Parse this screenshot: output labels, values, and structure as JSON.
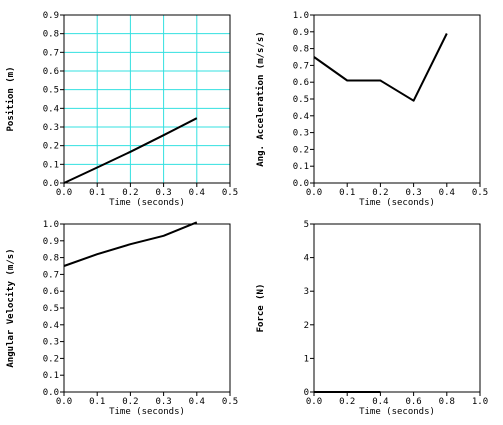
{
  "chart_data": [
    {
      "type": "line",
      "xlabel": "Time (seconds)",
      "ylabel": "Position (m)",
      "xlim": [
        0,
        0.5
      ],
      "ylim": [
        0,
        0.9
      ],
      "xticks": [
        "0.0",
        "0.1",
        "0.2",
        "0.3",
        "0.4",
        "0.5"
      ],
      "yticks": [
        "0.0",
        "0.1",
        "0.2",
        "0.3",
        "0.4",
        "0.5",
        "0.6",
        "0.7",
        "0.8",
        "0.9"
      ],
      "grid": true,
      "grid_color": "#33e0e0",
      "series": [
        {
          "x": [
            0.0,
            0.1,
            0.2,
            0.3,
            0.4
          ],
          "y": [
            0.0,
            0.083,
            0.167,
            0.256,
            0.347
          ]
        }
      ]
    },
    {
      "type": "line",
      "xlabel": "Time (seconds)",
      "ylabel": "Ang. Acceleration (m/s/s)",
      "xlim": [
        0,
        0.5
      ],
      "ylim": [
        0,
        1.0
      ],
      "xticks": [
        "0.0",
        "0.1",
        "0.2",
        "0.3",
        "0.4",
        "0.5"
      ],
      "yticks": [
        "0.0",
        "0.1",
        "0.2",
        "0.3",
        "0.4",
        "0.5",
        "0.6",
        "0.7",
        "0.8",
        "0.9",
        "1.0"
      ],
      "grid": false,
      "series": [
        {
          "x": [
            0.0,
            0.1,
            0.2,
            0.3,
            0.4
          ],
          "y": [
            0.75,
            0.61,
            0.61,
            0.49,
            0.89
          ]
        }
      ]
    },
    {
      "type": "line",
      "xlabel": "Time (seconds)",
      "ylabel": "Angular Velocity (m/s)",
      "xlim": [
        0,
        0.5
      ],
      "ylim": [
        0,
        1.0
      ],
      "xticks": [
        "0.0",
        "0.1",
        "0.2",
        "0.3",
        "0.4",
        "0.5"
      ],
      "yticks": [
        "0.0",
        "0.1",
        "0.2",
        "0.3",
        "0.4",
        "0.5",
        "0.6",
        "0.7",
        "0.8",
        "0.9",
        "1.0"
      ],
      "grid": false,
      "series": [
        {
          "x": [
            0.0,
            0.1,
            0.2,
            0.3,
            0.4
          ],
          "y": [
            0.75,
            0.82,
            0.88,
            0.93,
            1.01
          ]
        }
      ]
    },
    {
      "type": "line",
      "xlabel": "Time (seconds)",
      "ylabel": "Force (N)",
      "xlim": [
        0,
        1.0
      ],
      "ylim": [
        0,
        5
      ],
      "xticks": [
        "0.0",
        "0.2",
        "0.4",
        "0.6",
        "0.8",
        "1.0"
      ],
      "yticks": [
        "0",
        "1",
        "2",
        "3",
        "4",
        "5"
      ],
      "grid": false,
      "series": [
        {
          "x": [
            0.0,
            0.4
          ],
          "y": [
            0.0,
            0.0
          ]
        }
      ]
    }
  ]
}
